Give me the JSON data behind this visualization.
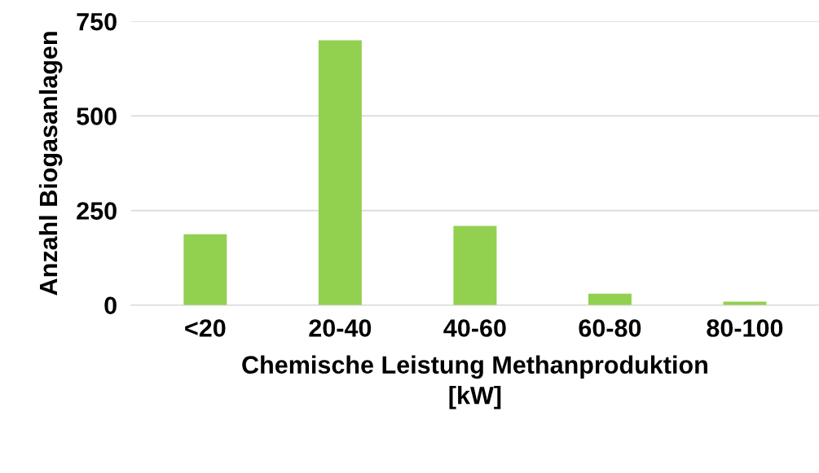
{
  "chart_data": {
    "type": "bar",
    "xlabel": "Chemische Leistung Methanproduktion\n[kW]",
    "ylabel": "Anzahl Biogasanlagen",
    "categories": [
      "<20",
      "20-40",
      "40-60",
      "60-80",
      "80-100"
    ],
    "values": [
      187,
      700,
      209,
      30,
      9
    ],
    "color": "#92d050",
    "ylim": [
      0,
      750
    ],
    "yticks": [
      0,
      250,
      500,
      750
    ],
    "grid": "y"
  }
}
